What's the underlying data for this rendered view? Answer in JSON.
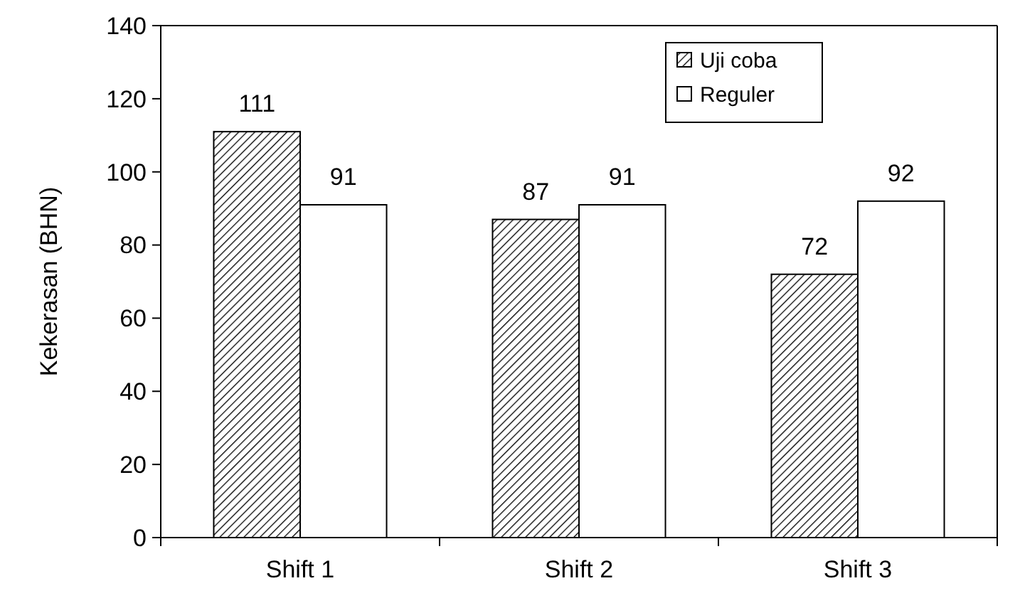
{
  "chart_data": {
    "type": "bar",
    "ylabel": "Kekerasan (BHN)",
    "categories": [
      "Shift 1",
      "Shift 2",
      "Shift 3"
    ],
    "series": [
      {
        "name": "Uji coba",
        "color": "#000000",
        "values": [
          111,
          87,
          72
        ]
      },
      {
        "name": "Reguler",
        "color": "#ffffff",
        "values": [
          91,
          91,
          92
        ]
      }
    ],
    "ylim": [
      0,
      140
    ],
    "yticks": [
      0,
      20,
      40,
      60,
      80,
      100,
      120,
      140
    ],
    "data_labels": true,
    "legend": "top right",
    "grid": false
  }
}
